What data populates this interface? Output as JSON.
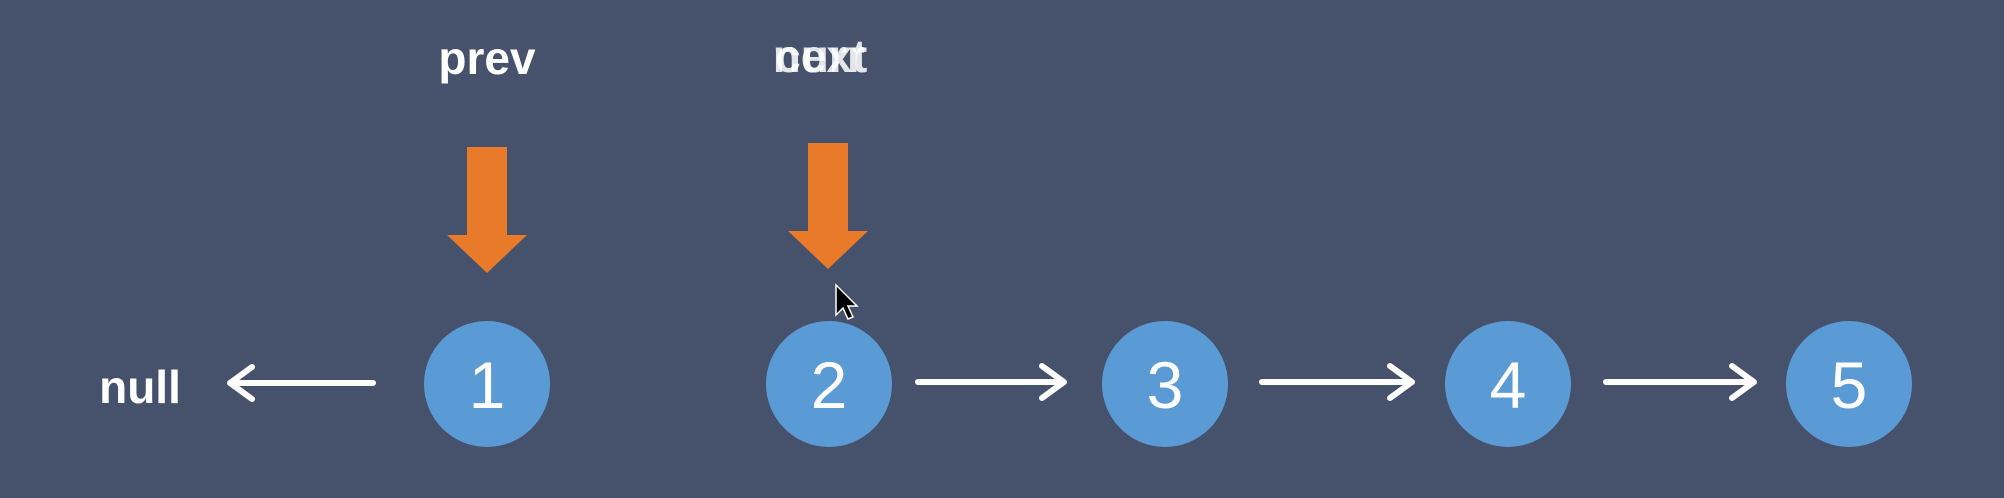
{
  "diagram": {
    "null_label": "null",
    "pointers": [
      {
        "id": "prev",
        "label": "prev",
        "color": "#e87a2a"
      },
      {
        "id": "curr",
        "label": "next",
        "overlay_label": "curr",
        "color": "#e87a2a"
      }
    ],
    "nodes": [
      {
        "value": "1"
      },
      {
        "value": "2"
      },
      {
        "value": "3"
      },
      {
        "value": "4"
      },
      {
        "value": "5"
      }
    ],
    "colors": {
      "background": "#46526b",
      "node_fill": "#5b9bd5",
      "pointer_arrow": "#e87a2a",
      "text": "#ffffff"
    }
  }
}
